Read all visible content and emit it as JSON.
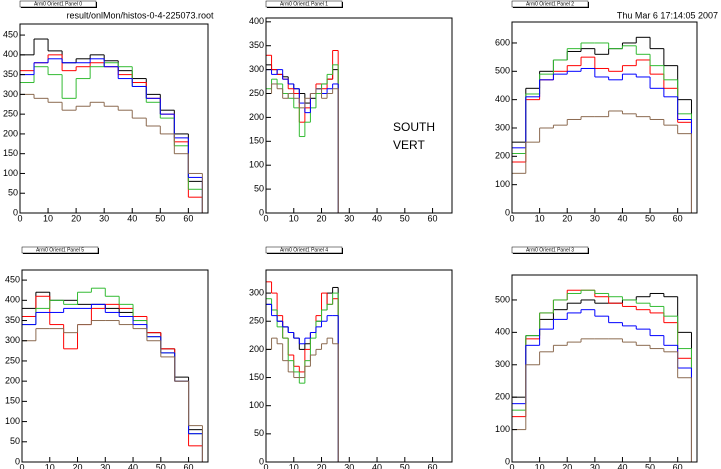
{
  "annotations": {
    "file": "result/onlMon/histos-0-4-225073.root",
    "date": "Thu Mar  6 17:14:05 2007",
    "south": "SOUTH",
    "vert": "VERT"
  },
  "chart_data": [
    {
      "type": "histogram",
      "title": "Arm0 Orient1 Panel 0",
      "bins": [
        0,
        5,
        10,
        15,
        20,
        25,
        30,
        35,
        40,
        45,
        50,
        55,
        60,
        65
      ],
      "xlim": [
        0,
        67
      ],
      "ylim": [
        0,
        478
      ],
      "xticks": [
        0,
        10,
        20,
        30,
        40,
        50,
        60
      ],
      "yticks": [
        0,
        50,
        100,
        150,
        200,
        250,
        300,
        350,
        400,
        450
      ],
      "series": [
        {
          "color": "#000000",
          "values": [
            400,
            440,
            410,
            380,
            390,
            400,
            385,
            360,
            340,
            300,
            260,
            200,
            80
          ]
        },
        {
          "color": "#ff0000",
          "values": [
            360,
            380,
            400,
            360,
            370,
            380,
            370,
            350,
            330,
            290,
            250,
            180,
            40
          ]
        },
        {
          "color": "#33bb33",
          "values": [
            330,
            370,
            350,
            290,
            340,
            370,
            380,
            370,
            320,
            280,
            240,
            170,
            60
          ]
        },
        {
          "color": "#0000ff",
          "values": [
            350,
            380,
            390,
            380,
            380,
            390,
            370,
            340,
            320,
            290,
            250,
            190,
            90
          ]
        },
        {
          "color": "#8b6a50",
          "values": [
            300,
            290,
            280,
            260,
            270,
            280,
            270,
            260,
            240,
            220,
            200,
            150,
            100
          ]
        }
      ]
    },
    {
      "type": "histogram",
      "title": "Arm0 Orient1 Panel 1",
      "bins": [
        0,
        2,
        4,
        6,
        8,
        10,
        12,
        14,
        16,
        18,
        20,
        22,
        24,
        26
      ],
      "xlim": [
        0,
        67
      ],
      "ylim": [
        0,
        408
      ],
      "xticks": [
        0,
        10,
        20,
        30,
        40,
        50,
        60
      ],
      "yticks": [
        0,
        50,
        100,
        150,
        200,
        250,
        300,
        350,
        400
      ],
      "series": [
        {
          "color": "#000000",
          "values": [
            310,
            300,
            290,
            285,
            270,
            260,
            250,
            230,
            240,
            260,
            270,
            280,
            300
          ]
        },
        {
          "color": "#ff0000",
          "values": [
            330,
            300,
            290,
            280,
            260,
            250,
            190,
            220,
            250,
            270,
            260,
            280,
            340
          ]
        },
        {
          "color": "#33bb33",
          "values": [
            260,
            280,
            270,
            250,
            240,
            220,
            160,
            190,
            220,
            250,
            270,
            290,
            310
          ]
        },
        {
          "color": "#0000ff",
          "values": [
            300,
            290,
            300,
            280,
            270,
            260,
            230,
            210,
            250,
            260,
            250,
            260,
            270
          ]
        },
        {
          "color": "#8b6a50",
          "values": [
            250,
            270,
            260,
            240,
            250,
            240,
            220,
            240,
            250,
            260,
            240,
            250,
            260
          ]
        }
      ]
    },
    {
      "type": "histogram",
      "title": "Arm0 Orient1 Panel 2",
      "bins": [
        0,
        5,
        10,
        15,
        20,
        25,
        30,
        35,
        40,
        45,
        50,
        55,
        60,
        65
      ],
      "xlim": [
        0,
        67
      ],
      "ylim": [
        0,
        674
      ],
      "xticks": [
        0,
        10,
        20,
        30,
        40,
        50,
        60
      ],
      "yticks": [
        0,
        100,
        200,
        300,
        400,
        500,
        600
      ],
      "series": [
        {
          "color": "#000000",
          "values": [
            250,
            440,
            500,
            540,
            570,
            580,
            560,
            580,
            600,
            620,
            580,
            520,
            400
          ]
        },
        {
          "color": "#ff0000",
          "values": [
            180,
            400,
            470,
            500,
            520,
            550,
            510,
            500,
            520,
            540,
            490,
            440,
            320
          ]
        },
        {
          "color": "#33bb33",
          "values": [
            210,
            420,
            490,
            540,
            580,
            600,
            600,
            580,
            590,
            560,
            520,
            470,
            350
          ]
        },
        {
          "color": "#0000ff",
          "values": [
            230,
            410,
            470,
            490,
            500,
            510,
            480,
            470,
            490,
            480,
            440,
            410,
            330
          ]
        },
        {
          "color": "#8b6a50",
          "values": [
            140,
            250,
            300,
            310,
            330,
            340,
            340,
            360,
            350,
            340,
            330,
            310,
            280
          ]
        }
      ]
    },
    {
      "type": "histogram",
      "title": "Arm0 Orient1 Panel 5",
      "bins": [
        0,
        5,
        10,
        15,
        20,
        25,
        30,
        35,
        40,
        45,
        50,
        55,
        60,
        65
      ],
      "xlim": [
        0,
        67
      ],
      "ylim": [
        0,
        475
      ],
      "xticks": [
        0,
        10,
        20,
        30,
        40,
        50,
        60
      ],
      "yticks": [
        0,
        50,
        100,
        150,
        200,
        250,
        300,
        350,
        400,
        450
      ],
      "series": [
        {
          "color": "#000000",
          "values": [
            380,
            420,
            400,
            400,
            390,
            390,
            380,
            370,
            350,
            320,
            280,
            210,
            80
          ]
        },
        {
          "color": "#ff0000",
          "values": [
            360,
            410,
            340,
            280,
            340,
            380,
            390,
            380,
            360,
            320,
            280,
            200,
            40
          ]
        },
        {
          "color": "#33bb33",
          "values": [
            340,
            380,
            400,
            390,
            420,
            430,
            410,
            390,
            350,
            310,
            270,
            200,
            70
          ]
        },
        {
          "color": "#0000ff",
          "values": [
            340,
            370,
            370,
            380,
            380,
            390,
            370,
            360,
            340,
            310,
            270,
            200,
            70
          ]
        },
        {
          "color": "#8b6a50",
          "values": [
            300,
            330,
            330,
            320,
            340,
            350,
            350,
            340,
            330,
            300,
            260,
            200,
            90
          ]
        }
      ]
    },
    {
      "type": "histogram",
      "title": "Arm0 Orient1 Panel 4",
      "bins": [
        0,
        2,
        4,
        6,
        8,
        10,
        12,
        14,
        16,
        18,
        20,
        22,
        24,
        26
      ],
      "xlim": [
        0,
        67
      ],
      "ylim": [
        0,
        341
      ],
      "xticks": [
        0,
        10,
        20,
        30,
        40,
        50,
        60
      ],
      "yticks": [
        0,
        50,
        100,
        150,
        200,
        250,
        300
      ],
      "series": [
        {
          "color": "#000000",
          "values": [
            280,
            270,
            250,
            240,
            230,
            220,
            200,
            210,
            230,
            250,
            270,
            300,
            310
          ]
        },
        {
          "color": "#ff0000",
          "values": [
            320,
            300,
            260,
            220,
            190,
            170,
            160,
            200,
            230,
            260,
            300,
            280,
            290
          ]
        },
        {
          "color": "#33bb33",
          "values": [
            290,
            270,
            240,
            220,
            180,
            160,
            140,
            180,
            220,
            250,
            270,
            280,
            300
          ]
        },
        {
          "color": "#0000ff",
          "values": [
            280,
            260,
            250,
            240,
            230,
            220,
            210,
            220,
            230,
            240,
            250,
            260,
            260
          ]
        },
        {
          "color": "#8b6a50",
          "values": [
            200,
            220,
            210,
            180,
            160,
            150,
            150,
            170,
            190,
            200,
            210,
            220,
            210
          ]
        }
      ]
    },
    {
      "type": "histogram",
      "title": "Arm0 Orient1 Panel 3",
      "bins": [
        0,
        5,
        10,
        15,
        20,
        25,
        30,
        35,
        40,
        45,
        50,
        55,
        60,
        65
      ],
      "xlim": [
        0,
        67
      ],
      "ylim": [
        0,
        577
      ],
      "xticks": [
        0,
        10,
        20,
        30,
        40,
        50,
        60
      ],
      "yticks": [
        0,
        100,
        200,
        300,
        400,
        500
      ],
      "series": [
        {
          "color": "#000000",
          "values": [
            200,
            390,
            440,
            470,
            490,
            500,
            490,
            490,
            500,
            510,
            520,
            510,
            400
          ]
        },
        {
          "color": "#ff0000",
          "values": [
            140,
            380,
            460,
            500,
            530,
            530,
            510,
            490,
            480,
            470,
            460,
            430,
            320
          ]
        },
        {
          "color": "#33bb33",
          "values": [
            160,
            390,
            460,
            500,
            520,
            530,
            520,
            510,
            500,
            490,
            480,
            450,
            350
          ]
        },
        {
          "color": "#0000ff",
          "values": [
            180,
            360,
            410,
            440,
            460,
            470,
            450,
            430,
            420,
            410,
            390,
            360,
            290
          ]
        },
        {
          "color": "#8b6a50",
          "values": [
            100,
            300,
            340,
            360,
            370,
            380,
            380,
            380,
            370,
            360,
            350,
            340,
            260
          ]
        }
      ]
    }
  ]
}
